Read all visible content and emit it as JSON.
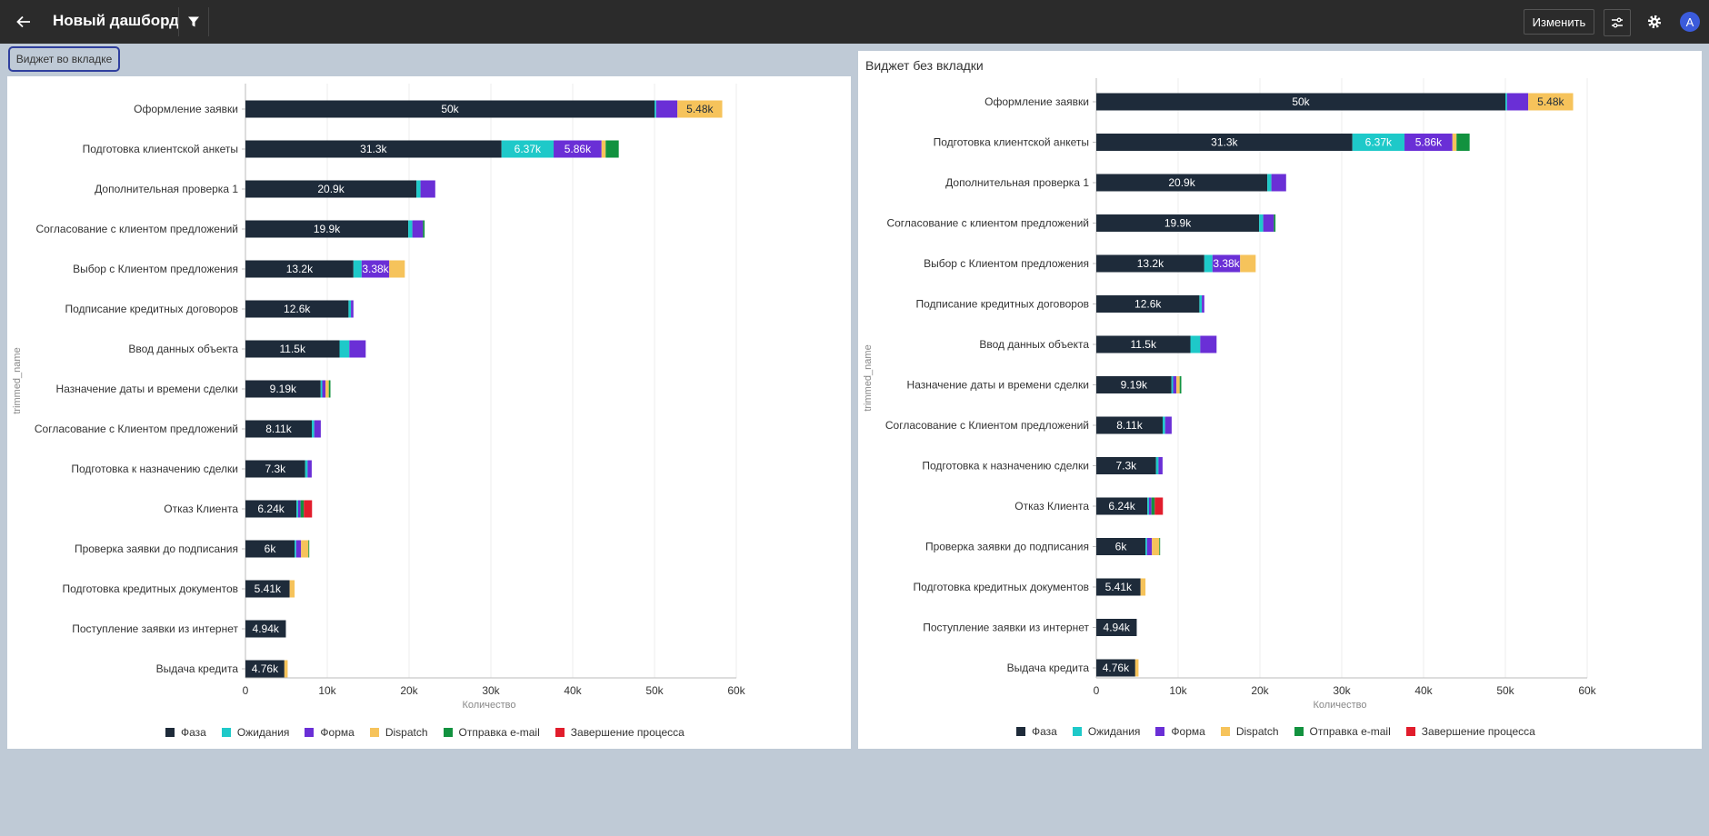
{
  "header": {
    "title": "Новый дашборд",
    "edit_label": "Изменить",
    "avatar_letter": "А"
  },
  "tab": {
    "label": "Виджет во вкладке"
  },
  "panel2": {
    "title": "Виджет без вкладки"
  },
  "colors": {
    "phase": "#1e2b3a",
    "wait": "#1ec9c9",
    "form": "#6a2fd6",
    "dispatch": "#f6c35b",
    "email": "#12923f",
    "finish": "#e11d2c"
  },
  "legend": [
    {
      "key": "phase",
      "label": "Фаза"
    },
    {
      "key": "wait",
      "label": "Ожидания"
    },
    {
      "key": "form",
      "label": "Форма"
    },
    {
      "key": "dispatch",
      "label": "Dispatch"
    },
    {
      "key": "email",
      "label": "Отправка e-mail"
    },
    {
      "key": "finish",
      "label": "Завершение процесса"
    }
  ],
  "chart_data": [
    {
      "type": "bar",
      "orientation": "horizontal",
      "stacked": true,
      "title": "Виджет во вкладке",
      "xlabel": "Количество",
      "ylabel": "trimmed_name",
      "xlim": [
        0,
        60000
      ],
      "xticks": [
        "0",
        "10k",
        "20k",
        "30k",
        "40k",
        "50k",
        "60k"
      ],
      "categories": [
        "Оформление заявки",
        "Подготовка клиентской анкеты",
        "Дополнительная проверка 1",
        "Согласование с клиентом предложений",
        "Выбор с Клиентом предложения",
        "Подписание кредитных договоров",
        "Ввод данных объекта",
        "Назначение даты и времени сделки",
        "Согласование с Клиентом предложений",
        "Подготовка к назначению сделки",
        "Отказ Клиента",
        "Проверка заявки до подписания",
        "Подготовка кредитных документов",
        "Поступление заявки из интернет",
        "Выдача кредита"
      ],
      "series": [
        {
          "name": "Фаза",
          "key": "phase",
          "values": [
            50000,
            31300,
            20900,
            19900,
            13200,
            12600,
            11500,
            9190,
            8110,
            7300,
            6240,
            6000,
            5410,
            4940,
            4760
          ],
          "labels": [
            "50k",
            "31.3k",
            "20.9k",
            "19.9k",
            "13.2k",
            "12.6k",
            "11.5k",
            "9.19k",
            "8.11k",
            "7.3k",
            "6.24k",
            "6k",
            "5.41k",
            "4.94k",
            "4.76k"
          ]
        },
        {
          "name": "Ожидания",
          "key": "wait",
          "values": [
            200,
            6370,
            500,
            500,
            1000,
            300,
            1200,
            200,
            300,
            300,
            200,
            200,
            0,
            0,
            0
          ],
          "labels": [
            "",
            "6.37k",
            "",
            "",
            "",
            "",
            "",
            "",
            "",
            "",
            "",
            "",
            "",
            "",
            ""
          ]
        },
        {
          "name": "Форма",
          "key": "form",
          "values": [
            2600,
            5860,
            1800,
            1300,
            3380,
            300,
            2000,
            400,
            800,
            500,
            300,
            600,
            0,
            0,
            0
          ],
          "labels": [
            "",
            "5.86k",
            "",
            "",
            "3.38k",
            "",
            "",
            "",
            "",
            "",
            "",
            "",
            "",
            "",
            ""
          ]
        },
        {
          "name": "Dispatch",
          "key": "dispatch",
          "values": [
            5480,
            500,
            0,
            0,
            1900,
            0,
            0,
            400,
            0,
            0,
            0,
            900,
            600,
            0,
            400
          ],
          "labels": [
            "5.48k",
            "",
            "",
            "",
            "",
            "",
            "",
            "",
            "",
            "",
            "",
            "",
            "",
            "",
            ""
          ]
        },
        {
          "name": "Отправка e-mail",
          "key": "email",
          "values": [
            0,
            1600,
            0,
            200,
            0,
            0,
            0,
            200,
            0,
            0,
            400,
            100,
            0,
            0,
            0
          ],
          "labels": [
            "",
            "",
            "",
            "",
            "",
            "",
            "",
            "",
            "",
            "",
            "",
            "",
            "",
            "",
            ""
          ]
        },
        {
          "name": "Завершение процесса",
          "key": "finish",
          "values": [
            0,
            0,
            0,
            0,
            0,
            0,
            0,
            0,
            0,
            0,
            1000,
            0,
            0,
            0,
            0
          ],
          "labels": [
            "",
            "",
            "",
            "",
            "",
            "",
            "",
            "",
            "",
            "",
            "",
            "",
            "",
            "",
            ""
          ]
        }
      ]
    },
    {
      "type": "bar",
      "orientation": "horizontal",
      "stacked": true,
      "title": "Виджет без вкладки",
      "xlabel": "Количество",
      "ylabel": "trimmed_name",
      "xlim": [
        0,
        60000
      ],
      "xticks": [
        "0",
        "10k",
        "20k",
        "30k",
        "40k",
        "50k",
        "60k"
      ],
      "categories": [
        "Оформление заявки",
        "Подготовка клиентской анкеты",
        "Дополнительная проверка 1",
        "Согласование с клиентом предложений",
        "Выбор с Клиентом предложения",
        "Подписание кредитных договоров",
        "Ввод данных объекта",
        "Назначение даты и времени сделки",
        "Согласование с Клиентом предложений",
        "Подготовка к назначению сделки",
        "Отказ Клиента",
        "Проверка заявки до подписания",
        "Подготовка кредитных документов",
        "Поступление заявки из интернет",
        "Выдача кредита"
      ],
      "series": [
        {
          "name": "Фаза",
          "key": "phase",
          "values": [
            50000,
            31300,
            20900,
            19900,
            13200,
            12600,
            11500,
            9190,
            8110,
            7300,
            6240,
            6000,
            5410,
            4940,
            4760
          ],
          "labels": [
            "50k",
            "31.3k",
            "20.9k",
            "19.9k",
            "13.2k",
            "12.6k",
            "11.5k",
            "9.19k",
            "8.11k",
            "7.3k",
            "6.24k",
            "6k",
            "5.41k",
            "4.94k",
            "4.76k"
          ]
        },
        {
          "name": "Ожидания",
          "key": "wait",
          "values": [
            200,
            6370,
            500,
            500,
            1000,
            300,
            1200,
            200,
            300,
            300,
            200,
            200,
            0,
            0,
            0
          ],
          "labels": [
            "",
            "6.37k",
            "",
            "",
            "",
            "",
            "",
            "",
            "",
            "",
            "",
            "",
            "",
            "",
            ""
          ]
        },
        {
          "name": "Форма",
          "key": "form",
          "values": [
            2600,
            5860,
            1800,
            1300,
            3380,
            300,
            2000,
            400,
            800,
            500,
            300,
            600,
            0,
            0,
            0
          ],
          "labels": [
            "",
            "5.86k",
            "",
            "",
            "3.38k",
            "",
            "",
            "",
            "",
            "",
            "",
            "",
            "",
            "",
            ""
          ]
        },
        {
          "name": "Dispatch",
          "key": "dispatch",
          "values": [
            5480,
            500,
            0,
            0,
            1900,
            0,
            0,
            400,
            0,
            0,
            0,
            900,
            600,
            0,
            400
          ],
          "labels": [
            "5.48k",
            "",
            "",
            "",
            "",
            "",
            "",
            "",
            "",
            "",
            "",
            "",
            "",
            "",
            ""
          ]
        },
        {
          "name": "Отправка e-mail",
          "key": "email",
          "values": [
            0,
            1600,
            0,
            200,
            0,
            0,
            0,
            200,
            0,
            0,
            400,
            100,
            0,
            0,
            0
          ],
          "labels": [
            "",
            "",
            "",
            "",
            "",
            "",
            "",
            "",
            "",
            "",
            "",
            "",
            "",
            "",
            ""
          ]
        },
        {
          "name": "Завершение процесса",
          "key": "finish",
          "values": [
            0,
            0,
            0,
            0,
            0,
            0,
            0,
            0,
            0,
            0,
            1000,
            0,
            0,
            0,
            0
          ],
          "labels": [
            "",
            "",
            "",
            "",
            "",
            "",
            "",
            "",
            "",
            "",
            "",
            "",
            "",
            "",
            ""
          ]
        }
      ]
    }
  ]
}
